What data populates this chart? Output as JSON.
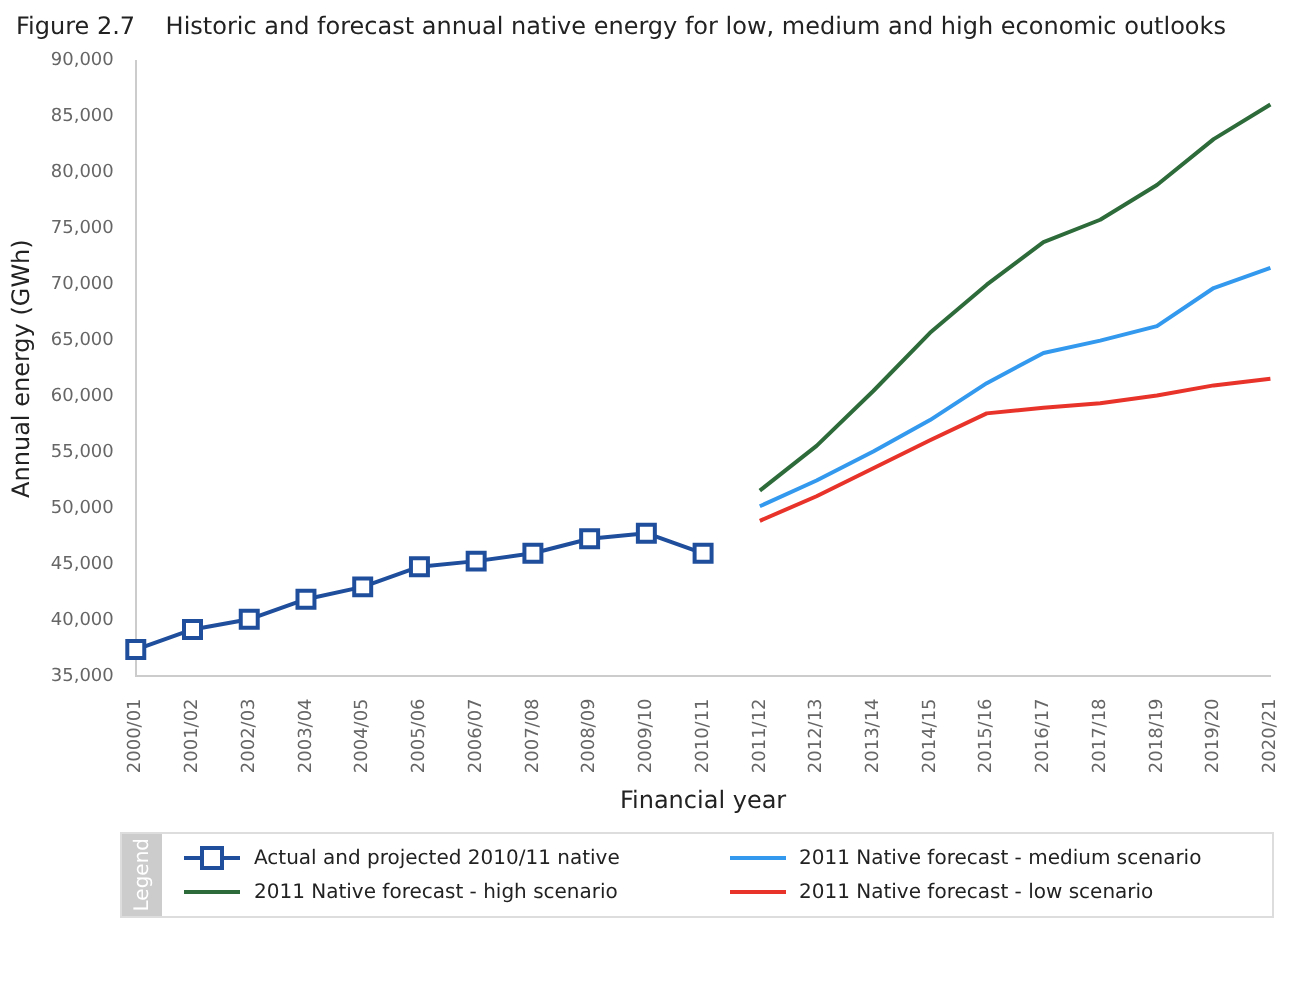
{
  "chart_data": {
    "type": "line",
    "title": "Figure 2.7    Historic and forecast annual native energy for low, medium and high economic outlooks",
    "xlabel": "Financial year",
    "ylabel": "Annual energy (GWh)",
    "legend_title": "Legend",
    "categories": [
      "2000/01",
      "2001/02",
      "2002/03",
      "2003/04",
      "2004/05",
      "2005/06",
      "2006/07",
      "2007/08",
      "2008/09",
      "2009/10",
      "2010/11",
      "2011/12",
      "2012/13",
      "2013/14",
      "2014/15",
      "2015/16",
      "2016/17",
      "2017/18",
      "2018/19",
      "2019/20",
      "2020/21"
    ],
    "series": [
      {
        "name": "Actual and projected 2010/11 native",
        "color": "#1f4e9c",
        "marker": "square",
        "values": [
          37400,
          39200,
          40100,
          41900,
          43000,
          44800,
          45300,
          46000,
          47300,
          47800,
          46000,
          null,
          null,
          null,
          null,
          null,
          null,
          null,
          null,
          null,
          null
        ]
      },
      {
        "name": "2011 Native forecast - medium scenario",
        "color": "#3399ee",
        "marker": "none",
        "values": [
          null,
          null,
          null,
          null,
          null,
          null,
          null,
          null,
          null,
          null,
          null,
          50200,
          52500,
          55100,
          57900,
          61200,
          63900,
          65000,
          66300,
          69700,
          71500
        ]
      },
      {
        "name": "2011 Native forecast - high scenario",
        "color": "#2e6b3a",
        "marker": "none",
        "values": [
          null,
          null,
          null,
          null,
          null,
          null,
          null,
          null,
          null,
          null,
          null,
          51600,
          55600,
          60500,
          65700,
          70000,
          73800,
          75800,
          78900,
          83000,
          86100
        ]
      },
      {
        "name": "2011 Native forecast - low scenario",
        "color": "#e8332a",
        "marker": "none",
        "values": [
          null,
          null,
          null,
          null,
          null,
          null,
          null,
          null,
          null,
          null,
          null,
          48900,
          51100,
          53600,
          56100,
          58500,
          59000,
          59400,
          60100,
          61000,
          61600
        ]
      }
    ],
    "ylim": [
      35000,
      90000
    ],
    "yticks": [
      {
        "value": 35000,
        "label": "35,000"
      },
      {
        "value": 40000,
        "label": "40,000"
      },
      {
        "value": 45000,
        "label": "45,000"
      },
      {
        "value": 50000,
        "label": "50,000"
      },
      {
        "value": 55000,
        "label": "55,000"
      },
      {
        "value": 60000,
        "label": "60,000"
      },
      {
        "value": 65000,
        "label": "65,000"
      },
      {
        "value": 70000,
        "label": "70,000"
      },
      {
        "value": 75000,
        "label": "75,000"
      },
      {
        "value": 80000,
        "label": "80,000"
      },
      {
        "value": 85000,
        "label": "85,000"
      },
      {
        "value": 90000,
        "label": "90,000"
      }
    ],
    "grid": false,
    "legend": "bottom",
    "line_style": "solid"
  }
}
